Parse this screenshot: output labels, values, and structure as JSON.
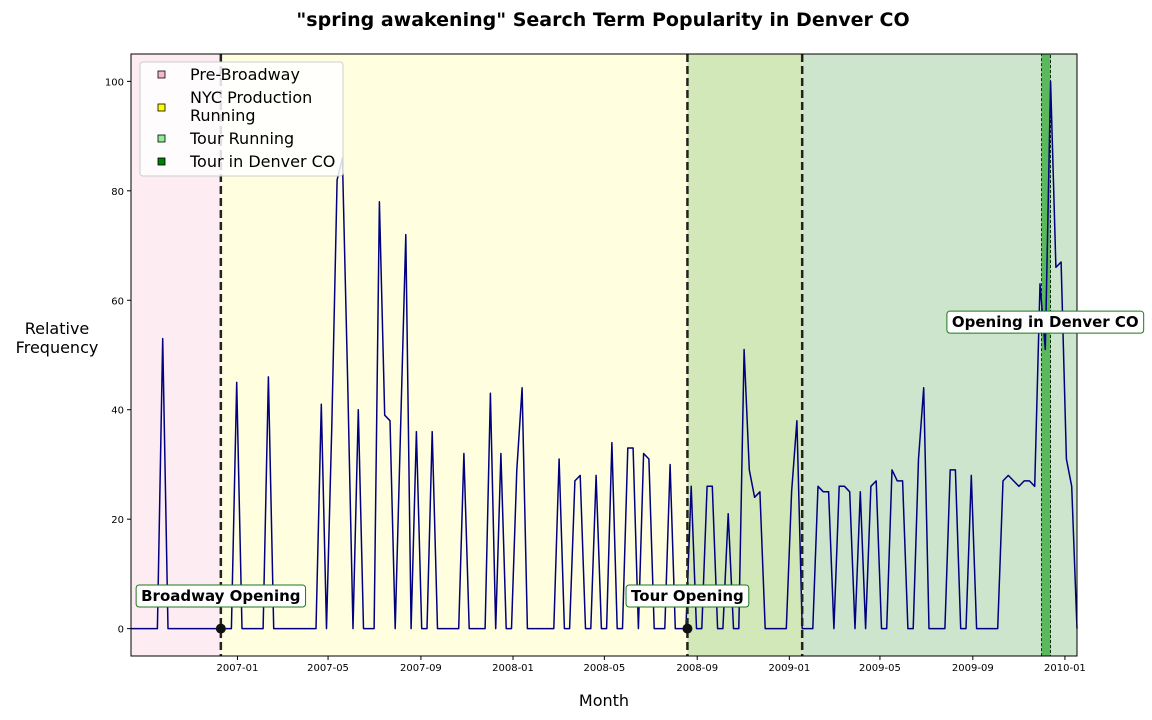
{
  "chart_data": {
    "type": "line",
    "title": "\"spring awakening\" Search Term Popularity in Denver CO",
    "xlabel": "Month",
    "ylabel": "Relative\nFrequency",
    "xlim": [
      "2006-08-13",
      "2010-01-17"
    ],
    "ylim": [
      -5,
      105
    ],
    "x_ticks": [
      "2007-01",
      "2007-05",
      "2007-09",
      "2008-01",
      "2008-05",
      "2008-09",
      "2009-01",
      "2009-05",
      "2009-09",
      "2010-01"
    ],
    "y_ticks": [
      0,
      20,
      40,
      60,
      80,
      100
    ],
    "grid": false,
    "legend_position": "top-left",
    "line_color": "#000080",
    "legend": [
      {
        "label": "Pre-Broadway",
        "color": "#f9b6c6"
      },
      {
        "label": "NYC Production\nRunning",
        "color": "#ffff00"
      },
      {
        "label": "Tour Running",
        "color": "#90ee90"
      },
      {
        "label": "Tour in Denver CO",
        "color": "#008000"
      }
    ],
    "periods": [
      {
        "label": "Pre-Broadway",
        "start": "2006-08-13",
        "end": "2006-12-10",
        "color": "#fdecf1"
      },
      {
        "label": "NYC Production Running",
        "start": "2006-12-10",
        "end": "2009-01-18",
        "color": "#ffffe0"
      },
      {
        "label": "Tour Running (overlap)",
        "start": "2008-08-19",
        "end": "2009-01-18",
        "color": "#d3e8b9"
      },
      {
        "label": "Tour Running",
        "start": "2009-01-18",
        "end": "2010-01-17",
        "color": "#cde5cd"
      },
      {
        "label": "Tour in Denver CO",
        "start": "2009-12-01",
        "end": "2009-12-13",
        "color": "#5cb85c"
      }
    ],
    "vlines": [
      "2006-12-10",
      "2008-08-19",
      "2009-01-18"
    ],
    "annotations": [
      {
        "text": "Broadway Opening",
        "date": "2006-12-10",
        "value": 0
      },
      {
        "text": "Tour Opening",
        "date": "2008-08-19",
        "value": 0
      },
      {
        "text": "Opening in Denver CO",
        "date": "2009-12-06",
        "value": 56
      }
    ],
    "series": [
      {
        "start_date": "2006-08-13",
        "frequency": "weekly",
        "values": [
          0,
          0,
          0,
          0,
          0,
          0,
          53,
          0,
          0,
          0,
          0,
          0,
          0,
          0,
          0,
          0,
          0,
          0,
          0,
          0,
          45,
          0,
          0,
          0,
          0,
          0,
          46,
          0,
          0,
          0,
          0,
          0,
          0,
          0,
          0,
          0,
          41,
          0,
          37,
          82,
          86,
          45,
          0,
          40,
          0,
          0,
          0,
          78,
          39,
          38,
          0,
          36,
          72,
          0,
          36,
          0,
          0,
          36,
          0,
          0,
          0,
          0,
          0,
          32,
          0,
          0,
          0,
          0,
          43,
          0,
          32,
          0,
          0,
          29,
          44,
          0,
          0,
          0,
          0,
          0,
          0,
          31,
          0,
          0,
          27,
          28,
          0,
          0,
          28,
          0,
          0,
          34,
          0,
          0,
          33,
          33,
          0,
          32,
          31,
          0,
          0,
          0,
          30,
          0,
          0,
          0,
          26,
          0,
          0,
          26,
          26,
          0,
          0,
          21,
          0,
          0,
          51,
          29,
          24,
          25,
          0,
          0,
          0,
          0,
          0,
          25,
          38,
          0,
          0,
          0,
          26,
          25,
          25,
          0,
          26,
          26,
          25,
          0,
          25,
          0,
          26,
          27,
          0,
          0,
          29,
          27,
          27,
          0,
          0,
          31,
          44,
          0,
          0,
          0,
          0,
          29,
          29,
          0,
          0,
          28,
          0,
          0,
          0,
          0,
          0,
          27,
          28,
          27,
          26,
          27,
          27,
          26,
          63,
          51,
          100,
          66,
          67,
          31,
          26,
          0
        ]
      }
    ]
  }
}
